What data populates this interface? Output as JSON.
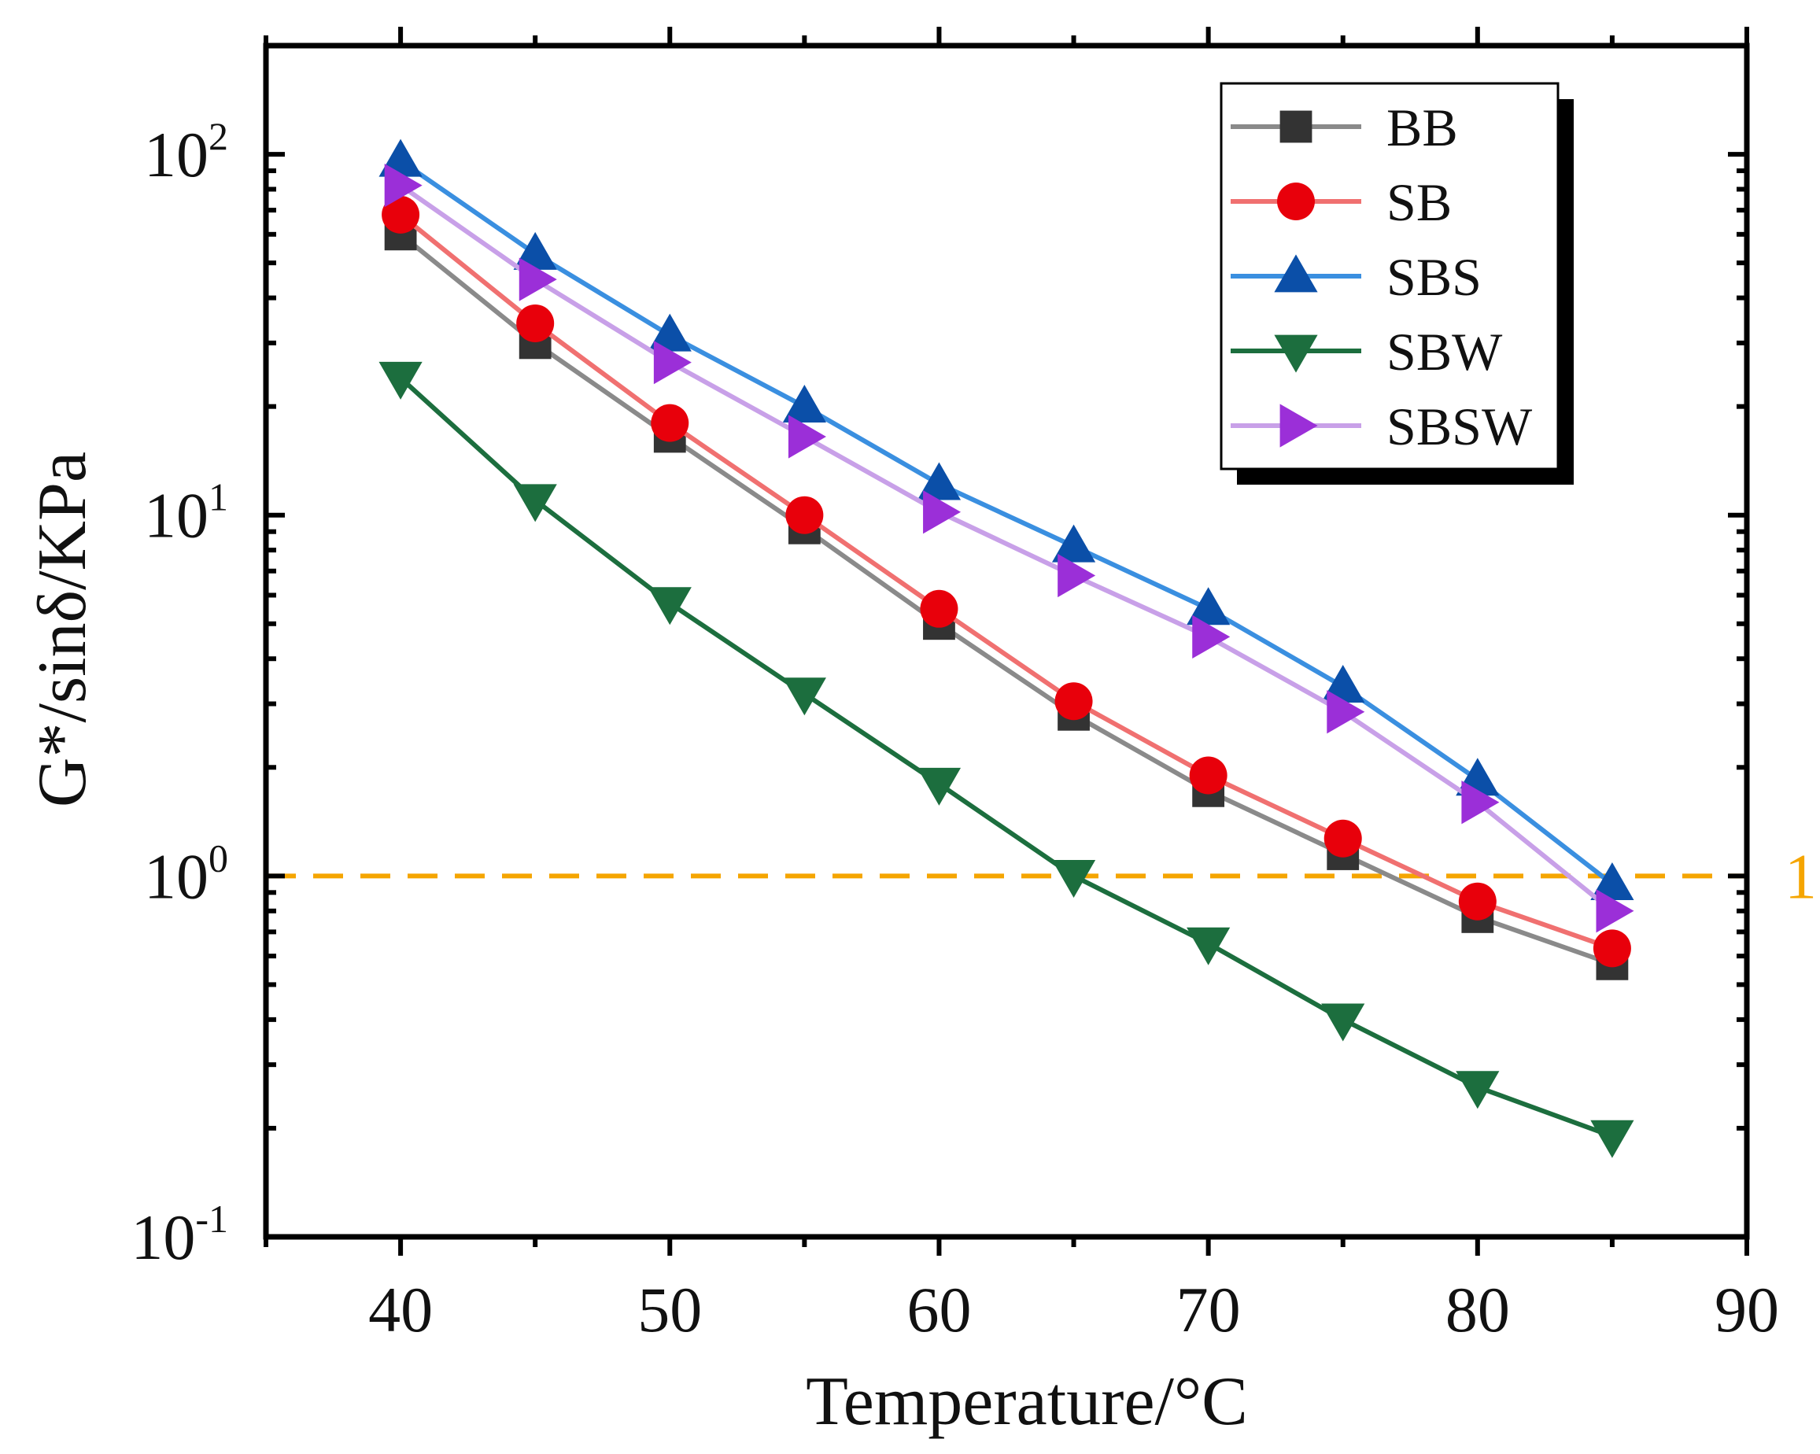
{
  "chart_data": {
    "type": "line",
    "xlabel": "Temperature/°C",
    "ylabel": "G*/sinδ/KPa",
    "xlim": [
      35,
      90
    ],
    "ylim": [
      0.1,
      200
    ],
    "yscale": "log",
    "x_ticks": [
      40,
      50,
      60,
      70,
      80,
      90
    ],
    "x_tick_labels": [
      "40",
      "50",
      "60",
      "70",
      "80",
      "90"
    ],
    "y_ticks": [
      {
        "value": 100,
        "base": "10",
        "exp": "2"
      },
      {
        "value": 10,
        "base": "10",
        "exp": "1"
      },
      {
        "value": 1,
        "base": "10",
        "exp": "0"
      },
      {
        "value": 0.1,
        "base": "10",
        "exp": "-1"
      }
    ],
    "reference_line": {
      "value": 1,
      "label": "1",
      "color": "#F5A500",
      "style": "dashed"
    },
    "x": [
      40,
      45,
      50,
      55,
      60,
      65,
      70,
      75,
      80,
      85
    ],
    "series": [
      {
        "name": "BB",
        "color": "#8A8A8A",
        "marker": "square",
        "marker_color": "#333333",
        "values": [
          60,
          30,
          16.5,
          9.2,
          5.0,
          2.8,
          1.72,
          1.15,
          0.77,
          0.57
        ]
      },
      {
        "name": "SB",
        "color": "#F07070",
        "marker": "circle",
        "marker_color": "#E8000B",
        "values": [
          68,
          34,
          18,
          10,
          5.5,
          3.05,
          1.9,
          1.27,
          0.85,
          0.63
        ]
      },
      {
        "name": "SBS",
        "color": "#3A8FE0",
        "marker": "triangle-up",
        "marker_color": "#0B4FA8",
        "values": [
          96,
          53,
          31.5,
          20,
          12.2,
          8.2,
          5.5,
          3.35,
          1.85,
          0.95
        ]
      },
      {
        "name": "SBW",
        "color": "#1C6E3E",
        "marker": "triangle-down",
        "marker_color": "#1C6E3E",
        "values": [
          24,
          11,
          5.7,
          3.2,
          1.8,
          1.0,
          0.65,
          0.4,
          0.26,
          0.19
        ]
      },
      {
        "name": "SBSW",
        "color": "#C8A0E8",
        "marker": "triangle-right",
        "marker_color": "#9B2FD8",
        "values": [
          82,
          45,
          26.5,
          16.5,
          10.2,
          6.8,
          4.6,
          2.85,
          1.6,
          0.8
        ]
      }
    ],
    "legend": {
      "position": "top-right",
      "entries": [
        "BB",
        "SB",
        "SBS",
        "SBW",
        "SBSW"
      ]
    }
  }
}
